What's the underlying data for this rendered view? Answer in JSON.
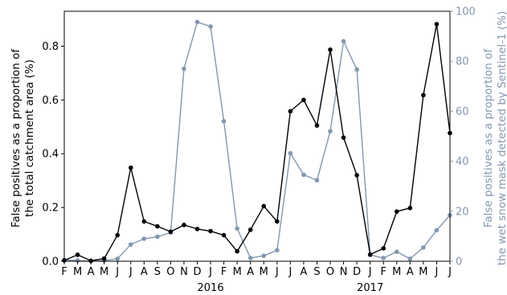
{
  "chart_data": {
    "type": "line",
    "x": [
      "Feb 2016",
      "Mar 2016",
      "Apr 2016",
      "May 2016",
      "Jun 2016",
      "Jul 2016",
      "Aug 2016",
      "Sep 2016",
      "Oct 2016",
      "Nov 2016",
      "Dec 2016",
      "Jan 2017",
      "Feb 2017",
      "Mar 2017",
      "Apr 2017",
      "May 2017",
      "Jun 2017",
      "Jul 2017",
      "Aug 2017",
      "Sep 2017",
      "Oct 2017",
      "Nov 2017",
      "Dec 2017",
      "Jan 2018",
      "Feb 2018",
      "Mar 2018",
      "Apr 2018",
      "May 2018",
      "Jun 2018",
      "Jul 2018"
    ],
    "x_tick_labels": [
      "F",
      "M",
      "A",
      "M",
      "J",
      "J",
      "A",
      "S",
      "O",
      "N",
      "D",
      "J",
      "F",
      "M",
      "A",
      "M",
      "J",
      "J",
      "A",
      "S",
      "O",
      "N",
      "D",
      "J",
      "F",
      "M",
      "A",
      "M",
      "J",
      "J"
    ],
    "year_labels": [
      {
        "label": "2016",
        "month_index": 11
      },
      {
        "label": "2017",
        "month_index": 23
      }
    ],
    "series": [
      {
        "axis": "left",
        "color": "#000000",
        "values": [
          0.003,
          0.024,
          0.002,
          0.01,
          0.097,
          0.348,
          0.148,
          0.13,
          0.11,
          0.135,
          0.12,
          0.112,
          0.097,
          0.037,
          0.117,
          0.205,
          0.148,
          0.558,
          0.6,
          0.505,
          0.787,
          0.46,
          0.32,
          0.025,
          0.048,
          0.185,
          0.198,
          0.618,
          0.882,
          0.477
        ]
      },
      {
        "axis": "right",
        "color": "#8497b0",
        "values": [
          0.5,
          0.3,
          0.0,
          0.3,
          1.0,
          6.7,
          9.0,
          9.8,
          11.5,
          77.0,
          95.7,
          93.9,
          56.0,
          13.1,
          1.3,
          2.2,
          4.4,
          43.2,
          34.6,
          32.4,
          52.0,
          88.0,
          76.7,
          2.5,
          1.3,
          3.8,
          1.0,
          5.5,
          12.4,
          18.4
        ]
      }
    ],
    "y_left": {
      "label_line1": "False positives as a proportion of",
      "label_line2": "the total catchment area (%)",
      "ylim": [
        0,
        0.93
      ],
      "ticks": [
        0.0,
        0.2,
        0.4,
        0.6,
        0.8
      ],
      "tick_labels": [
        "0.0",
        "0.2",
        "0.4",
        "0.6",
        "0.8"
      ]
    },
    "y_right": {
      "label_line1": "False positives as a proportion of",
      "label_line2": "the wet snow mask detected by Sentinel-1 (%)",
      "ylim": [
        0,
        100
      ],
      "ticks": [
        0,
        20,
        40,
        60,
        80,
        100
      ],
      "tick_labels": [
        "0",
        "20",
        "40",
        "60",
        "80",
        "100"
      ],
      "color": "#8497b0"
    },
    "grid": false
  }
}
